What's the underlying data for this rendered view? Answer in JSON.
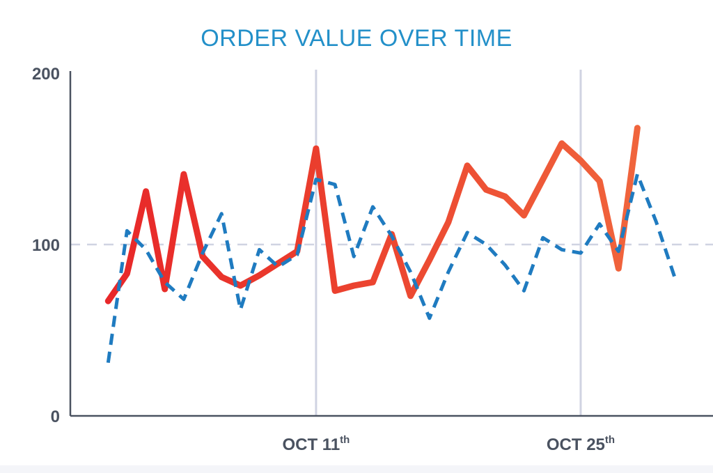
{
  "chart_data": {
    "type": "line",
    "title": "ORDER VALUE OVER TIME",
    "xlabel": "",
    "ylabel": "",
    "ylim": [
      0,
      200
    ],
    "xlim": [
      "2023-09-28",
      "2023-11-01"
    ],
    "y_ticks": [
      "0",
      "100",
      "200"
    ],
    "x_ticks": [
      {
        "date": "2023-10-11",
        "label": "OCT 11",
        "suffix": "th"
      },
      {
        "date": "2023-10-25",
        "label": "OCT 25",
        "suffix": "th"
      }
    ],
    "reference_line": {
      "y": 100,
      "style": "dashed"
    },
    "grid": {
      "x_major": true,
      "y": false
    },
    "colors": {
      "title": "#2390c9",
      "axis": "#4a5260",
      "grid": "#d0d3e2",
      "series_solid_start": "#e8282a",
      "series_solid_end": "#f0643c",
      "series_dashed": "#1f7bc0"
    },
    "series": [
      {
        "style": "solid",
        "points": [
          [
            "2023-09-30",
            67
          ],
          [
            "2023-10-01",
            83
          ],
          [
            "2023-10-02",
            131
          ],
          [
            "2023-10-03",
            74
          ],
          [
            "2023-10-04",
            141
          ],
          [
            "2023-10-05",
            93
          ],
          [
            "2023-10-06",
            81
          ],
          [
            "2023-10-07",
            76
          ],
          [
            "2023-10-08",
            82
          ],
          [
            "2023-10-09",
            89
          ],
          [
            "2023-10-10",
            96
          ],
          [
            "2023-10-11",
            156
          ],
          [
            "2023-10-12",
            73
          ],
          [
            "2023-10-13",
            76
          ],
          [
            "2023-10-14",
            78
          ],
          [
            "2023-10-15",
            106
          ],
          [
            "2023-10-16",
            70
          ],
          [
            "2023-10-17",
            91
          ],
          [
            "2023-10-18",
            113
          ],
          [
            "2023-10-19",
            146
          ],
          [
            "2023-10-20",
            132
          ],
          [
            "2023-10-21",
            128
          ],
          [
            "2023-10-22",
            117
          ],
          [
            "2023-10-23",
            138
          ],
          [
            "2023-10-24",
            159
          ],
          [
            "2023-10-25",
            149
          ],
          [
            "2023-10-26",
            137
          ],
          [
            "2023-10-27",
            86
          ],
          [
            "2023-10-28",
            168
          ]
        ]
      },
      {
        "style": "dashed",
        "points": [
          [
            "2023-09-30",
            31
          ],
          [
            "2023-10-01",
            108
          ],
          [
            "2023-10-02",
            97
          ],
          [
            "2023-10-03",
            78
          ],
          [
            "2023-10-04",
            68
          ],
          [
            "2023-10-05",
            95
          ],
          [
            "2023-10-06",
            118
          ],
          [
            "2023-10-07",
            62
          ],
          [
            "2023-10-08",
            97
          ],
          [
            "2023-10-09",
            87
          ],
          [
            "2023-10-10",
            94
          ],
          [
            "2023-10-11",
            138
          ],
          [
            "2023-10-12",
            135
          ],
          [
            "2023-10-13",
            93
          ],
          [
            "2023-10-14",
            122
          ],
          [
            "2023-10-15",
            105
          ],
          [
            "2023-10-16",
            84
          ],
          [
            "2023-10-17",
            57
          ],
          [
            "2023-10-18",
            84
          ],
          [
            "2023-10-19",
            107
          ],
          [
            "2023-10-20",
            100
          ],
          [
            "2023-10-21",
            88
          ],
          [
            "2023-10-22",
            73
          ],
          [
            "2023-10-23",
            104
          ],
          [
            "2023-10-24",
            97
          ],
          [
            "2023-10-25",
            95
          ],
          [
            "2023-10-26",
            112
          ],
          [
            "2023-10-27",
            96
          ],
          [
            "2023-10-28",
            141
          ],
          [
            "2023-10-29",
            113
          ],
          [
            "2023-10-30",
            80
          ]
        ]
      }
    ]
  }
}
